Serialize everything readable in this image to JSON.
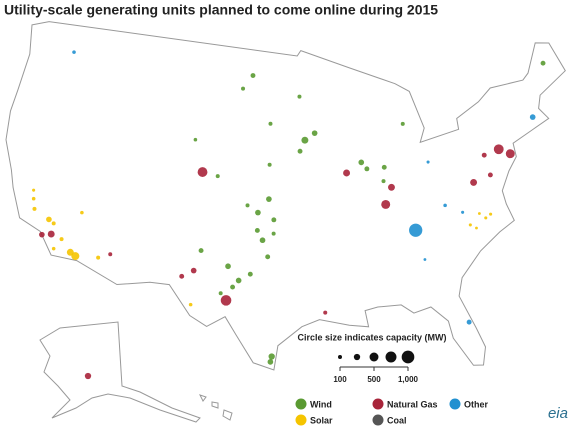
{
  "title": "Utility-scale generating units planned to come online during 2015",
  "size_legend": {
    "title": "Circle size indicates capacity (MW)",
    "sizes": [
      100,
      250,
      500,
      750,
      1000
    ],
    "ticks": [
      100,
      500,
      {
        "value": 1000,
        "label": "1,000"
      }
    ]
  },
  "fuels": [
    {
      "name": "Wind",
      "color": "#5a9a32"
    },
    {
      "name": "Natural Gas",
      "color": "#a8243a"
    },
    {
      "name": "Other",
      "color": "#2090d0"
    },
    {
      "name": "Solar",
      "color": "#f5c400"
    },
    {
      "name": "Coal",
      "color": "#555555"
    }
  ],
  "logo": "eia",
  "plants": [
    {
      "fuel": "Wind",
      "lon": -100,
      "lat": 47.5,
      "mw": 150
    },
    {
      "fuel": "Wind",
      "lon": -101,
      "lat": 46.5,
      "mw": 100
    },
    {
      "fuel": "Wind",
      "lon": -98,
      "lat": 44,
      "mw": 100
    },
    {
      "fuel": "Wind",
      "lon": -94.5,
      "lat": 42.8,
      "mw": 300
    },
    {
      "fuel": "Wind",
      "lon": -93.5,
      "lat": 43.3,
      "mw": 200
    },
    {
      "fuel": "Wind",
      "lon": -95,
      "lat": 42,
      "mw": 150
    },
    {
      "fuel": "Wind",
      "lon": -98,
      "lat": 41,
      "mw": 100
    },
    {
      "fuel": "Wind",
      "lon": -98,
      "lat": 38.5,
      "mw": 200
    },
    {
      "fuel": "Wind",
      "lon": -99,
      "lat": 37.5,
      "mw": 200
    },
    {
      "fuel": "Wind",
      "lon": -97.5,
      "lat": 37,
      "mw": 150
    },
    {
      "fuel": "Wind",
      "lon": -100,
      "lat": 38,
      "mw": 100
    },
    {
      "fuel": "Wind",
      "lon": -98.5,
      "lat": 35.5,
      "mw": 200
    },
    {
      "fuel": "Wind",
      "lon": -99,
      "lat": 36.2,
      "mw": 150
    },
    {
      "fuel": "Wind",
      "lon": -97.5,
      "lat": 36,
      "mw": 100
    },
    {
      "fuel": "Wind",
      "lon": -101.5,
      "lat": 33.5,
      "mw": 200
    },
    {
      "fuel": "Wind",
      "lon": -100.5,
      "lat": 32.5,
      "mw": 200
    },
    {
      "fuel": "Wind",
      "lon": -101,
      "lat": 32,
      "mw": 150
    },
    {
      "fuel": "Wind",
      "lon": -99.5,
      "lat": 33,
      "mw": 150
    },
    {
      "fuel": "Wind",
      "lon": -102,
      "lat": 31.5,
      "mw": 100
    },
    {
      "fuel": "Wind",
      "lon": -98,
      "lat": 34.3,
      "mw": 150
    },
    {
      "fuel": "Wind",
      "lon": -97.5,
      "lat": 27,
      "mw": 250
    },
    {
      "fuel": "Wind",
      "lon": -97.6,
      "lat": 26.6,
      "mw": 200
    },
    {
      "fuel": "Wind",
      "lon": -104,
      "lat": 34.5,
      "mw": 150
    },
    {
      "fuel": "Wind",
      "lon": -103,
      "lat": 40,
      "mw": 100
    },
    {
      "fuel": "Wind",
      "lon": -95,
      "lat": 46,
      "mw": 100
    },
    {
      "fuel": "Wind",
      "lon": -89,
      "lat": 41,
      "mw": 200
    },
    {
      "fuel": "Wind",
      "lon": -88.5,
      "lat": 40.5,
      "mw": 150
    },
    {
      "fuel": "Wind",
      "lon": -86.8,
      "lat": 40.5,
      "mw": 150
    },
    {
      "fuel": "Wind",
      "lon": -87,
      "lat": 39.5,
      "mw": 100
    },
    {
      "fuel": "Wind",
      "lon": -84.5,
      "lat": 43.5,
      "mw": 100
    },
    {
      "fuel": "Wind",
      "lon": -69,
      "lat": 45.8,
      "mw": 150
    },
    {
      "fuel": "Wind",
      "lon": -105.5,
      "lat": 42.5,
      "mw": 80
    },
    {
      "fuel": "Natural Gas",
      "lon": -104.5,
      "lat": 40.2,
      "mw": 600
    },
    {
      "fuel": "Natural Gas",
      "lon": -101.5,
      "lat": 31,
      "mw": 700
    },
    {
      "fuel": "Natural Gas",
      "lon": -104.5,
      "lat": 33,
      "mw": 200
    },
    {
      "fuel": "Natural Gas",
      "lon": -105.5,
      "lat": 32.5,
      "mw": 150
    },
    {
      "fuel": "Natural Gas",
      "lon": -90.5,
      "lat": 40.3,
      "mw": 300
    },
    {
      "fuel": "Natural Gas",
      "lon": -87,
      "lat": 37.8,
      "mw": 500
    },
    {
      "fuel": "Natural Gas",
      "lon": -86.3,
      "lat": 39,
      "mw": 300
    },
    {
      "fuel": "Natural Gas",
      "lon": -75.5,
      "lat": 40.5,
      "mw": 600
    },
    {
      "fuel": "Natural Gas",
      "lon": -77,
      "lat": 40.3,
      "mw": 150
    },
    {
      "fuel": "Natural Gas",
      "lon": -74.5,
      "lat": 40,
      "mw": 500
    },
    {
      "fuel": "Natural Gas",
      "lon": -78.5,
      "lat": 38.5,
      "mw": 300
    },
    {
      "fuel": "Natural Gas",
      "lon": -76.8,
      "lat": 38.8,
      "mw": 150
    },
    {
      "fuel": "Natural Gas",
      "lon": -117.5,
      "lat": 34,
      "mw": 300
    },
    {
      "fuel": "Natural Gas",
      "lon": -118.3,
      "lat": 33.8,
      "mw": 200
    },
    {
      "fuel": "Natural Gas",
      "lon": -112,
      "lat": 33.4,
      "mw": 100
    },
    {
      "fuel": "Natural Gas",
      "lon": -93,
      "lat": 30.2,
      "mw": 100
    },
    {
      "fuel": "Natural Gas",
      "lon": -150,
      "lat": 61.2,
      "mw": 250
    },
    {
      "fuel": "Other",
      "lon": -119.5,
      "lat": 47.3,
      "mw": 80
    },
    {
      "fuel": "Other",
      "lon": -84.5,
      "lat": 35.7,
      "mw": 1100
    },
    {
      "fuel": "Other",
      "lon": -71.5,
      "lat": 42.2,
      "mw": 200
    },
    {
      "fuel": "Other",
      "lon": -81,
      "lat": 28.5,
      "mw": 150
    },
    {
      "fuel": "Other",
      "lon": -81.5,
      "lat": 37.2,
      "mw": 80
    },
    {
      "fuel": "Other",
      "lon": -82.5,
      "lat": 40.5,
      "mw": 60
    },
    {
      "fuel": "Other",
      "lon": -80,
      "lat": 36.5,
      "mw": 60
    },
    {
      "fuel": "Other",
      "lon": -84,
      "lat": 33.5,
      "mw": 50
    },
    {
      "fuel": "Solar",
      "lon": -119.5,
      "lat": 35.5,
      "mw": 100
    },
    {
      "fuel": "Solar",
      "lon": -119.8,
      "lat": 36.2,
      "mw": 80
    },
    {
      "fuel": "Solar",
      "lon": -118,
      "lat": 35,
      "mw": 200
    },
    {
      "fuel": "Solar",
      "lon": -117.5,
      "lat": 34.8,
      "mw": 100
    },
    {
      "fuel": "Solar",
      "lon": -116.5,
      "lat": 33.8,
      "mw": 100
    },
    {
      "fuel": "Solar",
      "lon": -115.5,
      "lat": 33,
      "mw": 300
    },
    {
      "fuel": "Solar",
      "lon": -115,
      "lat": 32.8,
      "mw": 400
    },
    {
      "fuel": "Solar",
      "lon": -117,
      "lat": 33,
      "mw": 80
    },
    {
      "fuel": "Solar",
      "lon": -120,
      "lat": 36.8,
      "mw": 60
    },
    {
      "fuel": "Solar",
      "lon": -79.5,
      "lat": 35.5,
      "mw": 60
    },
    {
      "fuel": "Solar",
      "lon": -78,
      "lat": 35.8,
      "mw": 60
    },
    {
      "fuel": "Solar",
      "lon": -77.5,
      "lat": 36,
      "mw": 60
    },
    {
      "fuel": "Solar",
      "lon": -79,
      "lat": 35.2,
      "mw": 50
    },
    {
      "fuel": "Solar",
      "lon": -78.5,
      "lat": 36.2,
      "mw": 50
    },
    {
      "fuel": "Solar",
      "lon": -115.2,
      "lat": 36,
      "mw": 80
    },
    {
      "fuel": "Solar",
      "lon": -104.5,
      "lat": 30.5,
      "mw": 80
    },
    {
      "fuel": "Solar",
      "lon": -113,
      "lat": 33,
      "mw": 100
    }
  ]
}
